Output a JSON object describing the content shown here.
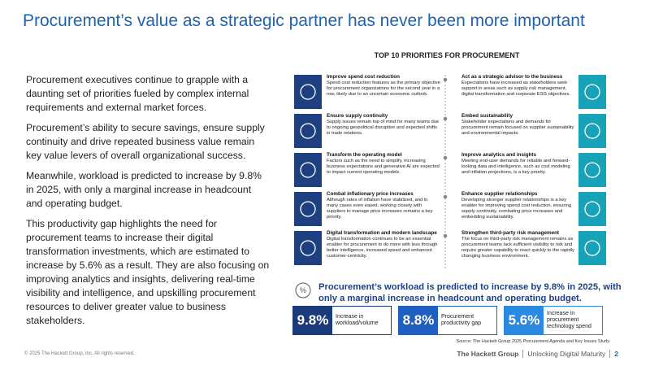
{
  "title": "Procurement’s value as a strategic partner has never been more important",
  "body": {
    "paragraphs": [
      "Procurement executives continue to grapple with a daunting set of priorities fueled by complex internal requirements and external market forces.",
      "Procurement’s ability to secure savings, ensure supply continuity and drive repeated business value remain key value levers of overall organizational success.",
      "Meanwhile, workload is predicted to increase by 9.8% in 2025, with only a marginal increase in headcount and operating budget.",
      "This productivity gap highlights the need for procurement teams to increase their digital transformation investments, which are estimated to increase by 5.6% as a result. They are also focusing on improving analytics and insights, delivering real-time visibility and intelligence, and upskilling procurement resources to deliver greater value to business stakeholders."
    ]
  },
  "panel": {
    "heading": "TOP 10 PRIORITIES FOR PROCUREMENT",
    "left": [
      {
        "title": "Improve spend cost reduction",
        "text": "Spend cost reduction features as the primary objective for procurement organizations for the second year in a row, likely due to an uncertain economic outlook."
      },
      {
        "title": "Ensure supply continuity",
        "text": "Supply issues remain top of mind for many teams due to ongoing geopolitical disruption and expected shifts in trade relations."
      },
      {
        "title": "Transform the operating model",
        "text": "Factors such as the need to simplify, increasing business expectations and generative AI are expected to impact current operating models."
      },
      {
        "title": "Combat inflationary price increases",
        "text": "Although rates of inflation have stabilized, and in many cases even eased, working closely with suppliers to manage price increases remains a key priority."
      },
      {
        "title": "Digital transformation and modern landscape",
        "text": "Digital transformation continues to be an essential enabler for procurement to do more with less through better intelligence, increased speed and enhanced customer-centricity."
      }
    ],
    "right": [
      {
        "title": "Act as a strategic advisor to the business",
        "text": "Expectations have increased as stakeholders seek support in areas such as supply risk management, digital transformation and corporate ESG objectives."
      },
      {
        "title": "Embed sustainability",
        "text": "Stakeholder expectations and demands for procurement remain focused on supplier sustainability and environmental impacts."
      },
      {
        "title": "Improve analytics and insights",
        "text": "Meeting end-user demands for reliable and forward-looking data and intelligence, such as cost modeling and inflation projections, is a key priority."
      },
      {
        "title": "Enhance supplier relationships",
        "text": "Developing stronger supplier relationships is a key enabler for improving spend cost reduction, ensuring supply continuity, combating price increases and embedding sustainability."
      },
      {
        "title": "Strengthen third-party risk management",
        "text": "The focus on third-party risk management remains as procurement teams lack sufficient visibility to risk and require greater capability to react quickly to the rapidly changing business environment."
      }
    ],
    "banner": "Procurement’s workload is predicted to increase by 9.8% in 2025, with only a marginal increase in headcount and operating budget.",
    "stats": [
      {
        "value": "9.8%",
        "label": "Increase in workload/volume"
      },
      {
        "value": "8.8%",
        "label": "Procurement productivity gap"
      },
      {
        "value": "5.6%",
        "label": "Increase in procurement technology spend"
      }
    ],
    "source": "Source: The Hackett Group 2025 Procurement Agenda and Key Issues Study"
  },
  "footer": {
    "copyright": "© 2025 The Hackett Group, Inc. All rights reserved.",
    "brand": "The Hackett Group",
    "tagline": "Unlocking Digital Maturity",
    "page": "2"
  }
}
